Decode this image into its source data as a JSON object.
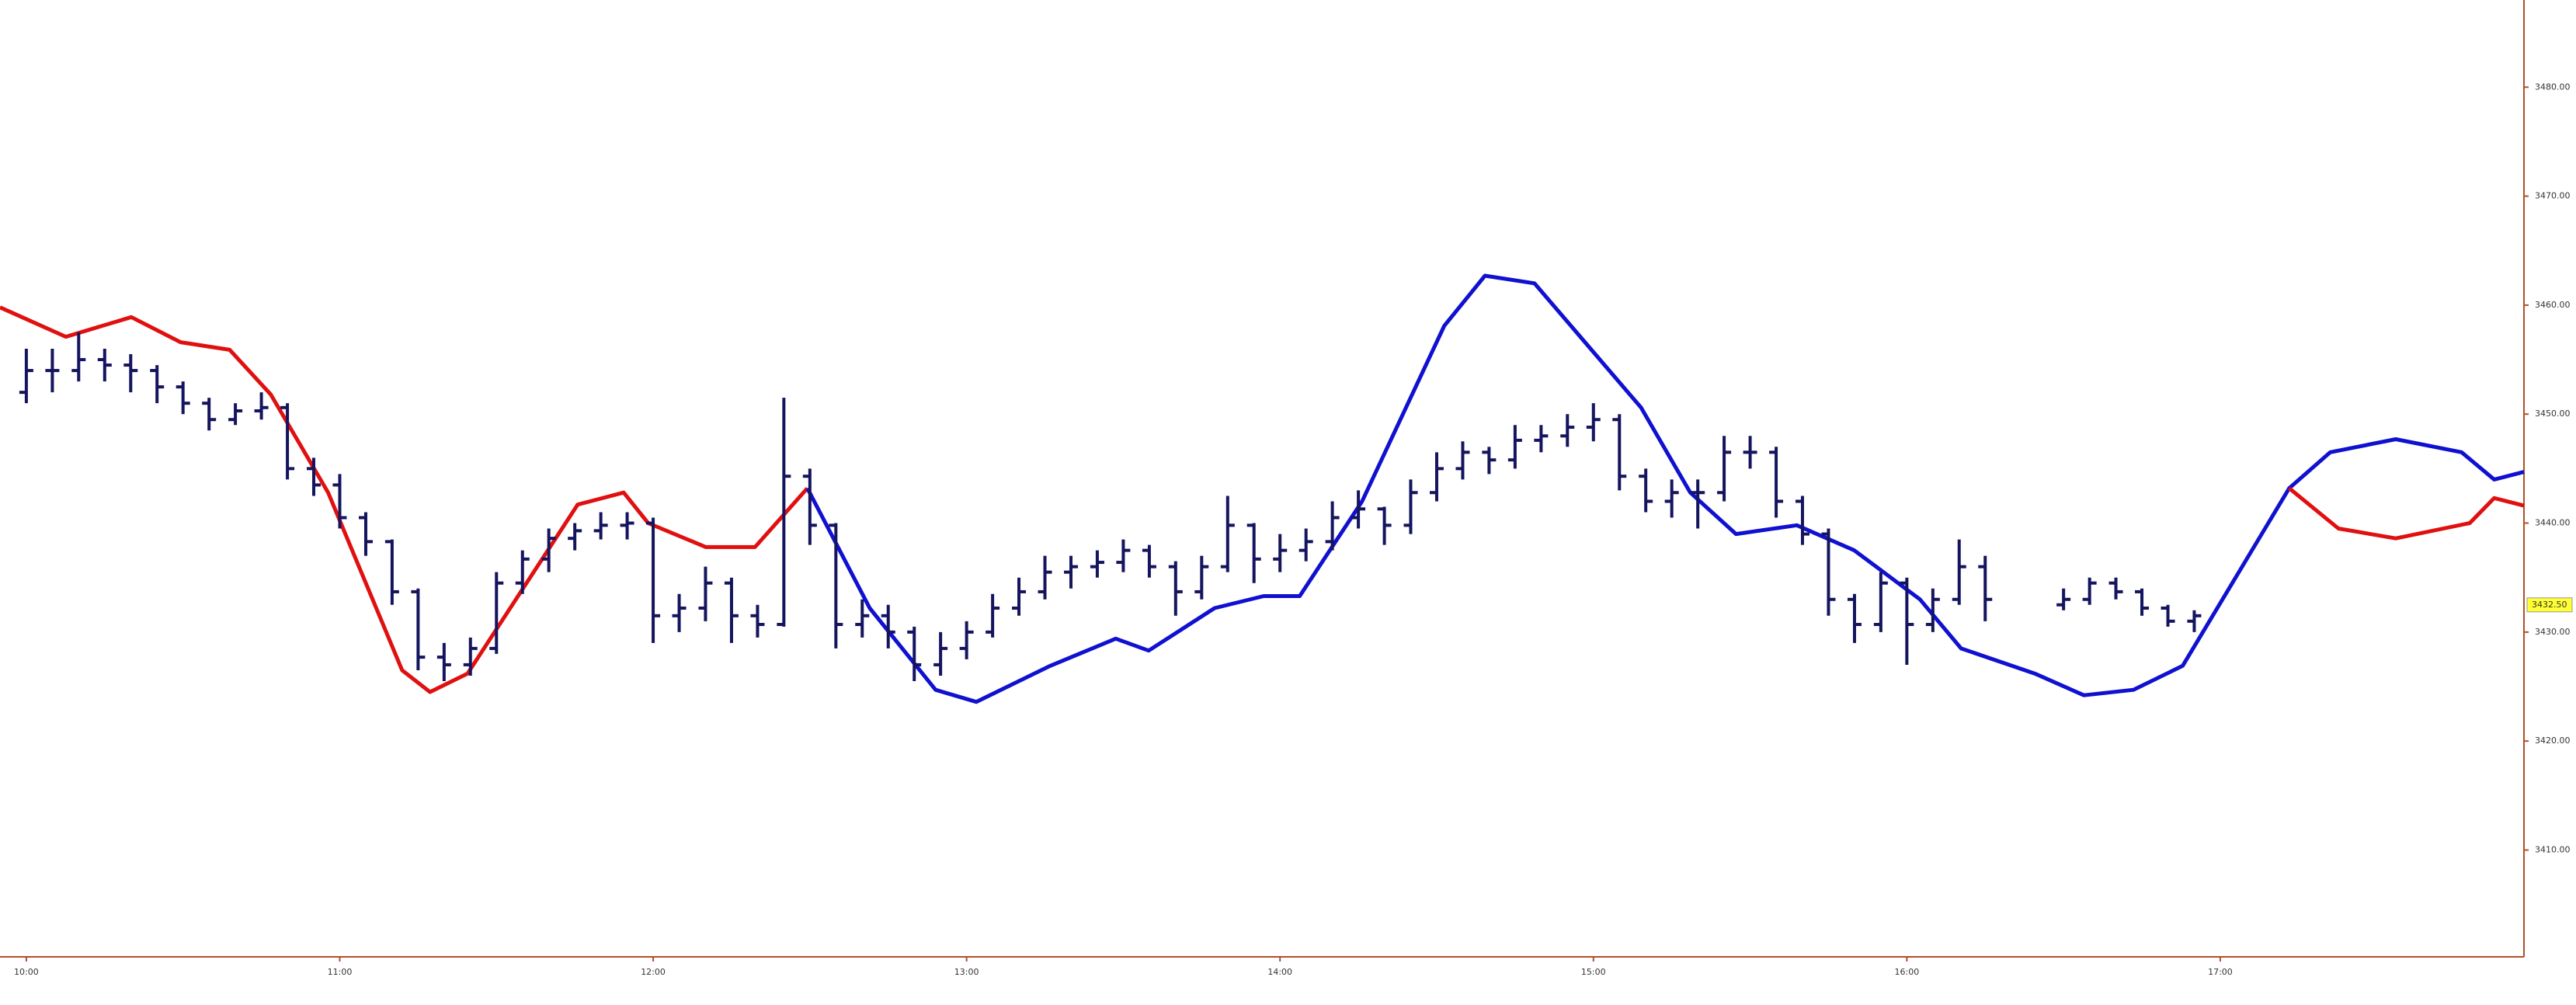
{
  "chart_data": {
    "type": "ohlc",
    "xlim": [
      9.916,
      17.969
    ],
    "ylim": [
      3400.2,
      3488
    ],
    "xticks": [
      {
        "value": 10,
        "label": "10:00"
      },
      {
        "value": 11,
        "label": "11:00"
      },
      {
        "value": 12,
        "label": "12:00"
      },
      {
        "value": 13,
        "label": "13:00"
      },
      {
        "value": 14,
        "label": "14:00"
      },
      {
        "value": 15,
        "label": "15:00"
      },
      {
        "value": 16,
        "label": "16:00"
      },
      {
        "value": 17,
        "label": "17:00"
      }
    ],
    "yticks": [
      {
        "value": 3410,
        "label": "3410.00"
      },
      {
        "value": 3420,
        "label": "3420.00"
      },
      {
        "value": 3430,
        "label": "3430.00"
      },
      {
        "value": 3440,
        "label": "3440.00"
      },
      {
        "value": 3450,
        "label": "3450.00"
      },
      {
        "value": 3460,
        "label": "3460.00"
      },
      {
        "value": 3470,
        "label": "3470.00"
      },
      {
        "value": 3480,
        "label": "3480.00"
      }
    ],
    "last_price": {
      "value": 3432.5,
      "label": "3432.50"
    },
    "bars": {
      "color": "#14145f",
      "x": [
        10,
        10.083,
        10.167,
        10.25,
        10.333,
        10.417,
        10.5,
        10.583,
        10.667,
        10.75,
        10.833,
        10.917,
        11,
        11.083,
        11.167,
        11.25,
        11.333,
        11.417,
        11.5,
        11.583,
        11.667,
        11.75,
        11.833,
        11.917,
        12,
        12.083,
        12.167,
        12.25,
        12.333,
        12.417,
        12.5,
        12.583,
        12.667,
        12.75,
        12.833,
        12.917,
        13,
        13.083,
        13.167,
        13.25,
        13.333,
        13.417,
        13.5,
        13.583,
        13.667,
        13.75,
        13.833,
        13.917,
        14,
        14.083,
        14.167,
        14.25,
        14.333,
        14.417,
        14.5,
        14.583,
        14.667,
        14.75,
        14.833,
        14.917,
        15,
        15.083,
        15.167,
        15.25,
        15.333,
        15.417,
        15.5,
        15.583,
        15.667,
        15.75,
        15.833,
        15.917,
        16,
        16.083,
        16.167,
        16.25,
        16.5,
        16.583,
        16.667,
        16.75,
        16.833,
        16.917
      ],
      "open": [
        3452,
        3454,
        3454,
        3455,
        3454.5,
        3454,
        3452.5,
        3451,
        3449.5,
        3450.3,
        3450.6,
        3445,
        3443.5,
        3440.5,
        3438.3,
        3433.7,
        3427.7,
        3427,
        3428.5,
        3434.5,
        3436.7,
        3438.6,
        3439.3,
        3439.8,
        3440,
        3431.5,
        3432.2,
        3434.5,
        3431.5,
        3430.7,
        3444.3,
        3439.8,
        3430.7,
        3431.5,
        3430,
        3427,
        3428.5,
        3430,
        3432.2,
        3433.7,
        3435.5,
        3436,
        3436.4,
        3437.5,
        3436,
        3433.7,
        3436,
        3439.8,
        3436.7,
        3437.5,
        3438.3,
        3440.5,
        3441.3,
        3439.8,
        3442.8,
        3445,
        3446.5,
        3445.8,
        3447.6,
        3448,
        3448.8,
        3449.5,
        3444.3,
        3442,
        3442.8,
        3442.8,
        3446.5,
        3446.5,
        3442,
        3439,
        3433,
        3430.7,
        3434.5,
        3430.7,
        3433,
        3436,
        3432.5,
        3433,
        3434.5,
        3433.7,
        3432.2,
        3431
      ],
      "high": [
        3456,
        3456,
        3457.5,
        3456,
        3455.5,
        3454.5,
        3453,
        3451.5,
        3451,
        3452,
        3451,
        3446,
        3444.5,
        3441,
        3438.5,
        3434,
        3429,
        3429.5,
        3435.5,
        3437.5,
        3439.5,
        3440,
        3441,
        3441,
        3440.5,
        3433.5,
        3436,
        3435,
        3432.5,
        3451.5,
        3445,
        3440,
        3433,
        3432.5,
        3430.5,
        3430,
        3431,
        3433.5,
        3435,
        3437,
        3437,
        3437.5,
        3438.5,
        3438,
        3436.5,
        3437,
        3442.5,
        3440,
        3439,
        3439.5,
        3442,
        3443,
        3441.5,
        3444,
        3446.5,
        3447.5,
        3447,
        3449,
        3449,
        3450,
        3451,
        3450,
        3445,
        3444,
        3444,
        3448,
        3448,
        3447,
        3442.5,
        3439.5,
        3433.5,
        3435.5,
        3435,
        3434,
        3438.5,
        3437,
        3434,
        3435,
        3435,
        3434,
        3432.5,
        3432
      ],
      "low": [
        3451,
        3452,
        3453,
        3453,
        3452,
        3451,
        3450,
        3448.5,
        3449,
        3449.5,
        3444,
        3442.5,
        3439.5,
        3437,
        3432.5,
        3426.5,
        3425.5,
        3426,
        3428,
        3433.5,
        3435.5,
        3437.5,
        3438.5,
        3438.5,
        3429,
        3430,
        3431,
        3429,
        3429.5,
        3430.5,
        3438,
        3428.5,
        3429.5,
        3428.5,
        3425.5,
        3426,
        3427.5,
        3429.5,
        3431.5,
        3433,
        3434,
        3435,
        3435.5,
        3435,
        3431.5,
        3433,
        3435.5,
        3434.5,
        3435.5,
        3436.5,
        3437.5,
        3439.5,
        3438,
        3439,
        3442,
        3444,
        3444.5,
        3445,
        3446.5,
        3447,
        3447.5,
        3443,
        3441,
        3440.5,
        3439.5,
        3442,
        3445,
        3440.5,
        3438,
        3431.5,
        3429,
        3430,
        3427,
        3430,
        3432.5,
        3431,
        3432,
        3432.5,
        3433,
        3431.5,
        3430.5,
        3430
      ],
      "close": [
        3454,
        3454,
        3455,
        3454.5,
        3454,
        3452.5,
        3451,
        3449.5,
        3450.3,
        3450.6,
        3445,
        3443.5,
        3440.5,
        3438.3,
        3433.7,
        3427.7,
        3427,
        3428.5,
        3434.5,
        3436.7,
        3438.6,
        3439.3,
        3439.8,
        3440,
        3431.5,
        3432.2,
        3434.5,
        3431.5,
        3430.7,
        3444.3,
        3439.8,
        3430.7,
        3431.5,
        3430,
        3427,
        3428.5,
        3430,
        3432.2,
        3433.7,
        3435.5,
        3436,
        3436.4,
        3437.5,
        3436,
        3433.7,
        3436,
        3439.8,
        3436.7,
        3437.5,
        3438.3,
        3440.5,
        3441.3,
        3439.8,
        3442.8,
        3445,
        3446.5,
        3445.8,
        3447.6,
        3448,
        3448.8,
        3449.5,
        3444.3,
        3442,
        3442.8,
        3442.8,
        3446.5,
        3446.5,
        3442,
        3439,
        3433,
        3430.7,
        3434.5,
        3430.7,
        3433,
        3436,
        3433,
        3433,
        3434.5,
        3433.7,
        3432.2,
        3431,
        3431.5
      ]
    },
    "series": [
      {
        "color": "#e01010",
        "x": [
          9.916,
          10.126,
          10.335,
          10.492,
          10.649,
          10.78,
          10.963,
          11.199,
          11.288,
          11.408,
          11.759,
          11.906,
          11.984,
          12.168,
          12.325,
          12.492
        ],
        "values": [
          3459.8,
          3457.1,
          3458.9,
          3456.6,
          3455.9,
          3451.8,
          3442.8,
          3426.5,
          3424.5,
          3426.2,
          3441.7,
          3442.8,
          3440,
          3437.8,
          3437.8,
          3443.2
        ]
      },
      {
        "color": "#1010d0",
        "x": [
          12.492,
          12.691,
          12.901,
          13.031,
          13.267,
          13.476,
          13.581,
          13.791,
          13.948,
          14.063,
          14.262,
          14.524,
          14.654,
          14.812,
          15.152,
          15.309,
          15.455,
          15.649,
          15.832,
          16.042,
          16.173,
          16.408,
          16.565,
          16.723,
          16.88,
          17.22,
          17.351,
          17.56,
          17.77,
          17.874,
          17.969
        ],
        "values": [
          3443.2,
          3432.2,
          3424.7,
          3423.6,
          3426.9,
          3429.4,
          3428.3,
          3432.2,
          3433.3,
          3433.3,
          3442,
          3458.1,
          3462.7,
          3462,
          3450.6,
          3442.8,
          3439,
          3439.8,
          3437.5,
          3433,
          3428.5,
          3426.2,
          3424.2,
          3424.7,
          3426.9,
          3443.2,
          3446.5,
          3447.7,
          3446.5,
          3444,
          3444.7
        ]
      },
      {
        "color": "#e01010",
        "x": [
          17.22,
          17.377,
          17.56,
          17.796,
          17.874,
          17.969
        ],
        "values": [
          3443.2,
          3439.5,
          3438.6,
          3440,
          3442.3,
          3441.6
        ]
      }
    ]
  }
}
